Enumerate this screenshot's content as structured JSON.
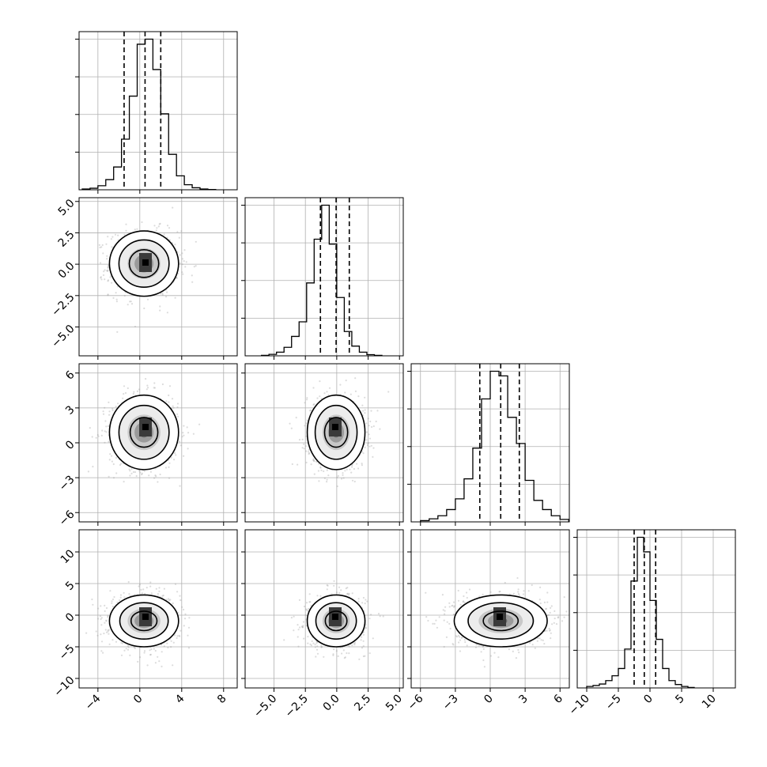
{
  "chart_data": {
    "type": "corner",
    "title": "",
    "parameters": [
      {
        "range": [
          -5.8,
          9.3
        ],
        "ticks": [
          -4,
          0,
          4,
          8
        ],
        "tick_labels": [
          "−4",
          "0",
          "4",
          "8"
        ],
        "quantiles": [
          -1.5,
          0.5,
          2.0
        ],
        "hist": {
          "start": -5.5,
          "width": 0.75,
          "counts": [
            0.3,
            0.6,
            1.6,
            4.0,
            9.0,
            20.0,
            37.0,
            57.5,
            59.5,
            47.5,
            30.0,
            14.0,
            5.5,
            2.0,
            0.8,
            0.3,
            0.1
          ]
        }
      },
      {
        "range": [
          -7.3,
          5.3
        ],
        "ticks": [
          -5.0,
          -2.5,
          0.0,
          2.5,
          5.0
        ],
        "tick_labels": [
          "−5.0",
          "−2.5",
          "0.0",
          "2.5",
          "5.0"
        ],
        "quantiles": [
          -1.3,
          -0.05,
          1.0
        ],
        "hist": {
          "start": -6.0,
          "width": 0.6,
          "counts": [
            0.2,
            0.6,
            1.5,
            3.5,
            8.0,
            14.0,
            30.0,
            48.0,
            62.0,
            46.0,
            24.0,
            10.0,
            4.0,
            1.5,
            0.5,
            0.2
          ]
        }
      },
      {
        "range": [
          -6.8,
          6.8
        ],
        "ticks": [
          -6,
          -3,
          0,
          3,
          6
        ],
        "tick_labels": [
          "−6",
          "−3",
          "0",
          "3",
          "6"
        ],
        "quantiles": [
          -0.9,
          0.9,
          2.5
        ],
        "hist": {
          "start": -6.0,
          "width": 0.75,
          "counts": [
            0.4,
            1.0,
            2.0,
            4.0,
            7.5,
            14.0,
            24.0,
            40.0,
            49.0,
            47.5,
            34.0,
            25.5,
            13.5,
            7.0,
            4.0,
            2.0,
            0.8
          ]
        }
      },
      {
        "range": [
          -11.5,
          13.5
        ],
        "ticks": [
          -10,
          -5,
          0,
          5,
          10
        ],
        "tick_labels": [
          "−10",
          "−5",
          "0",
          "5",
          "10"
        ],
        "quantiles": [
          -2.5,
          -0.9,
          0.9
        ],
        "hist": {
          "start": -10.0,
          "width": 1.0,
          "counts": [
            0.3,
            0.5,
            0.8,
            1.5,
            2.5,
            4.0,
            8.0,
            22.0,
            31.0,
            28.0,
            18.0,
            10.0,
            4.0,
            1.5,
            0.7,
            0.3,
            0.1
          ]
        }
      }
    ],
    "pairs": [
      {
        "row": 1,
        "col": 0,
        "x_center": 0.4,
        "y_center": 0.05,
        "x_sigma": 1.65,
        "y_sigma": 1.3,
        "levels": [
          0.85,
          1.45,
          2.0
        ]
      },
      {
        "row": 2,
        "col": 0,
        "x_center": 0.4,
        "y_center": 0.9,
        "x_sigma": 1.65,
        "y_sigma": 1.6,
        "levels": [
          0.8,
          1.45,
          2.0
        ]
      },
      {
        "row": 2,
        "col": 1,
        "x_center": -0.05,
        "y_center": 0.9,
        "x_sigma": 1.15,
        "y_sigma": 1.6,
        "levels": [
          0.8,
          1.45,
          2.0
        ]
      },
      {
        "row": 3,
        "col": 0,
        "x_center": 0.4,
        "y_center": -0.9,
        "x_sigma": 1.65,
        "y_sigma": 2.05,
        "levels": [
          0.75,
          1.4,
          2.0
        ]
      },
      {
        "row": 3,
        "col": 1,
        "x_center": -0.05,
        "y_center": -0.9,
        "x_sigma": 1.15,
        "y_sigma": 2.05,
        "levels": [
          0.75,
          1.4,
          2.0
        ]
      },
      {
        "row": 3,
        "col": 2,
        "x_center": 0.9,
        "y_center": -0.9,
        "x_sigma": 2.0,
        "y_sigma": 2.05,
        "levels": [
          0.75,
          1.4,
          2.0
        ]
      }
    ],
    "grid": true,
    "line_color": "#000000",
    "grid_color": "#b0b0b0",
    "scatter_color": "#9a9a9a"
  }
}
